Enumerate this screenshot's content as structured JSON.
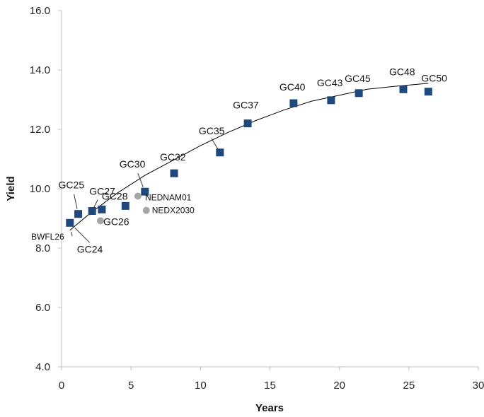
{
  "chart_data": {
    "type": "scatter",
    "xlabel": "Years",
    "ylabel": "Yield",
    "xlim": [
      0,
      30
    ],
    "ylim": [
      4.0,
      16.0
    ],
    "x_ticks": [
      "0",
      "5",
      "10",
      "15",
      "20",
      "25",
      "30"
    ],
    "y_ticks": [
      "4.0",
      "6.0",
      "8.0",
      "10.0",
      "12.0",
      "14.0",
      "16.0"
    ],
    "grid": false,
    "series": [
      {
        "marker": "square",
        "color": "#1F497D",
        "points": [
          {
            "label": "GC24",
            "x": 0.6,
            "y": 8.85
          },
          {
            "label": "GC25",
            "x": 1.2,
            "y": 9.15
          },
          {
            "label": "GC27",
            "x": 2.2,
            "y": 9.25
          },
          {
            "label": "GC28",
            "x": 2.9,
            "y": 9.3
          },
          {
            "label": "",
            "x": 4.6,
            "y": 9.42
          },
          {
            "label": "GC30",
            "x": 6.0,
            "y": 9.9
          },
          {
            "label": "GC32",
            "x": 8.1,
            "y": 10.52
          },
          {
            "label": "GC35",
            "x": 11.4,
            "y": 11.22
          },
          {
            "label": "GC37",
            "x": 13.4,
            "y": 12.2
          },
          {
            "label": "GC40",
            "x": 16.7,
            "y": 12.88
          },
          {
            "label": "GC43",
            "x": 19.4,
            "y": 12.98
          },
          {
            "label": "GC45",
            "x": 21.4,
            "y": 13.22
          },
          {
            "label": "GC48",
            "x": 24.6,
            "y": 13.35
          },
          {
            "label": "GC50",
            "x": 26.4,
            "y": 13.27
          }
        ]
      },
      {
        "marker": "circle",
        "color": "#A6A6A6",
        "points": [
          {
            "label": "GC26",
            "x": 2.8,
            "y": 8.92
          },
          {
            "label": "NEDNAM01",
            "x": 5.5,
            "y": 9.75
          },
          {
            "label": "NEDX2030",
            "x": 6.1,
            "y": 9.27
          }
        ]
      }
    ],
    "trendline": {
      "type": "polynomial",
      "color": "#000000",
      "x": [
        0.6,
        2,
        4,
        6,
        8,
        10,
        12,
        14,
        16,
        18,
        20,
        22,
        24,
        26.4
      ],
      "y": [
        8.6,
        9.15,
        9.85,
        10.45,
        10.95,
        11.45,
        11.9,
        12.3,
        12.65,
        12.95,
        13.15,
        13.35,
        13.45,
        13.55
      ]
    },
    "annotations": [
      {
        "text": "BWFL26"
      }
    ]
  }
}
